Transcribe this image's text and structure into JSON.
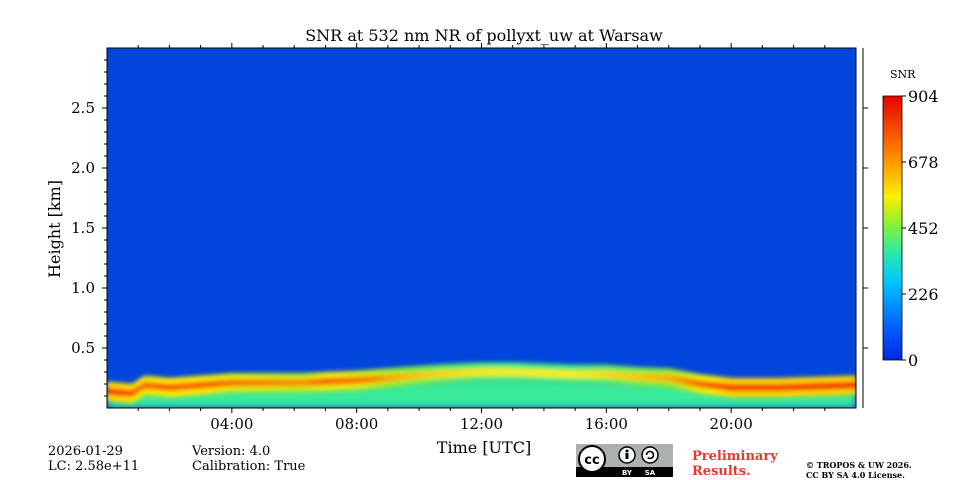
{
  "chart_data": {
    "type": "heatmap",
    "title": "SNR at 532 nm NR of pollyxt_uw at Warsaw",
    "xlabel": "Time [UTC]",
    "ylabel": "Height [km]",
    "xlim_hours": [
      0,
      24
    ],
    "ylim_km": [
      0,
      3.0
    ],
    "x_ticks": [
      {
        "hours": 4,
        "label": "04:00"
      },
      {
        "hours": 8,
        "label": "08:00"
      },
      {
        "hours": 12,
        "label": "12:00"
      },
      {
        "hours": 16,
        "label": "16:00"
      },
      {
        "hours": 20,
        "label": "20:00"
      }
    ],
    "y_ticks": [
      {
        "km": 0.5,
        "label": "0.5"
      },
      {
        "km": 1.0,
        "label": "1.0"
      },
      {
        "km": 1.5,
        "label": "1.5"
      },
      {
        "km": 2.0,
        "label": "2.0"
      },
      {
        "km": 2.5,
        "label": "2.5"
      }
    ],
    "colorbar": {
      "title": "SNR",
      "min": 0,
      "max": 904,
      "ticks": [
        "0",
        "226",
        "452",
        "678",
        "904"
      ],
      "colormap": "jet"
    },
    "layer_profile": [
      {
        "hour": 0.0,
        "height_km": 0.14,
        "snr": 820
      },
      {
        "hour": 0.8,
        "height_km": 0.12,
        "snr": 800
      },
      {
        "hour": 1.2,
        "height_km": 0.19,
        "snr": 760
      },
      {
        "hour": 2.0,
        "height_km": 0.17,
        "snr": 780
      },
      {
        "hour": 3.0,
        "height_km": 0.19,
        "snr": 770
      },
      {
        "hour": 4.0,
        "height_km": 0.21,
        "snr": 740
      },
      {
        "hour": 5.0,
        "height_km": 0.21,
        "snr": 720
      },
      {
        "hour": 6.3,
        "height_km": 0.21,
        "snr": 700
      },
      {
        "hour": 7.0,
        "height_km": 0.22,
        "snr": 760
      },
      {
        "hour": 8.0,
        "height_km": 0.23,
        "snr": 740
      },
      {
        "hour": 9.5,
        "height_km": 0.26,
        "snr": 640
      },
      {
        "hour": 10.5,
        "height_km": 0.28,
        "snr": 600
      },
      {
        "hour": 12.0,
        "height_km": 0.3,
        "snr": 570
      },
      {
        "hour": 13.0,
        "height_km": 0.3,
        "snr": 560
      },
      {
        "hour": 14.0,
        "height_km": 0.29,
        "snr": 560
      },
      {
        "hour": 15.0,
        "height_km": 0.28,
        "snr": 560
      },
      {
        "hour": 16.0,
        "height_km": 0.28,
        "snr": 590
      },
      {
        "hour": 17.0,
        "height_km": 0.26,
        "snr": 620
      },
      {
        "hour": 18.0,
        "height_km": 0.25,
        "snr": 650
      },
      {
        "hour": 19.0,
        "height_km": 0.2,
        "snr": 760
      },
      {
        "hour": 20.0,
        "height_km": 0.17,
        "snr": 820
      },
      {
        "hour": 21.5,
        "height_km": 0.17,
        "snr": 820
      },
      {
        "hour": 23.9,
        "height_km": 0.19,
        "snr": 830
      }
    ],
    "background_snr": 40
  },
  "footer": {
    "date": "2026-01-29",
    "lc": "LC: 2.58e+11",
    "version": "Version: 4.0",
    "calibration": "Calibration: True",
    "preliminary_line1": "Preliminary",
    "preliminary_line2": "Results.",
    "copyright_line1": "© TROPOS & UW 2026.",
    "copyright_line2": "CC BY SA 4.0 License.",
    "license_badge": {
      "cc": "cc",
      "by": "BY",
      "sa": "SA"
    }
  }
}
